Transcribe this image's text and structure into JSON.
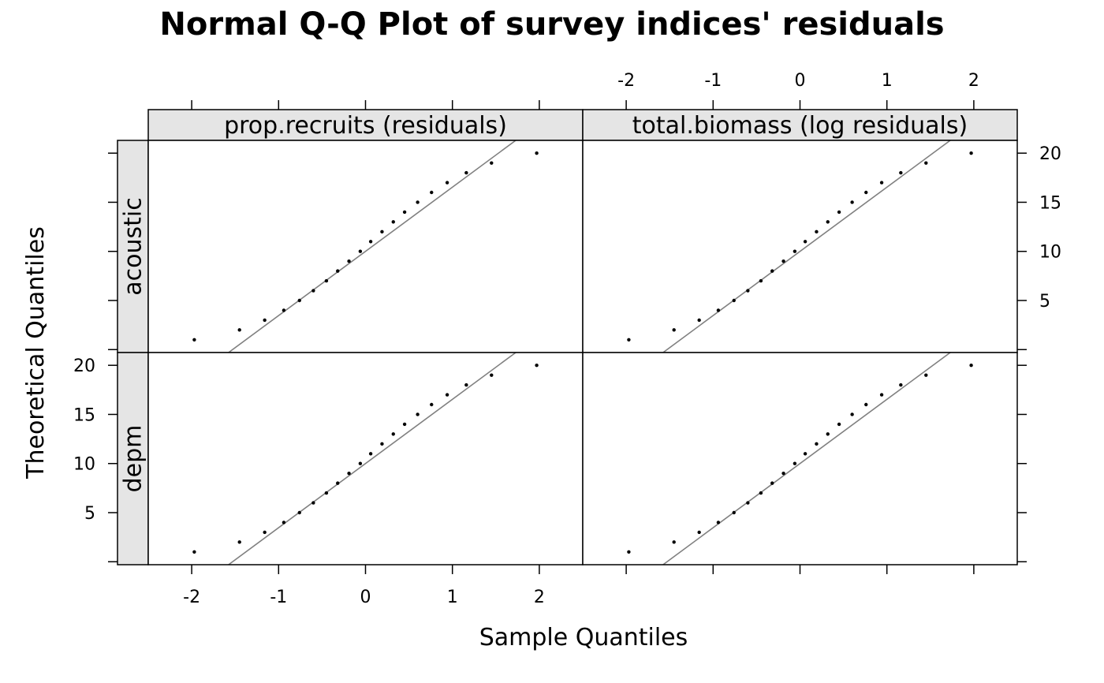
{
  "chart_data": {
    "type": "scatter",
    "title": "Normal Q-Q Plot of survey indices' residuals",
    "xlabel": "Sample Quantiles",
    "ylabel": "Theoretical Quantiles",
    "xlim": [
      -2.5,
      2.5
    ],
    "ylim": [
      -0.3,
      21.3
    ],
    "x_ticks": [
      -2,
      -1,
      0,
      1,
      2
    ],
    "x_tick_labels": [
      "-2",
      "-1",
      "0",
      "1",
      "2"
    ],
    "y_ticks": [
      0,
      5,
      10,
      15,
      20
    ],
    "y_tick_labels": [
      "",
      "5",
      "10",
      "15",
      "20"
    ],
    "grid": false,
    "columns": [
      "prop.recruits (residuals)",
      "total.biomass (log residuals)"
    ],
    "rows": [
      "acoustic",
      "depm"
    ],
    "panels": [
      {
        "column": "prop.recruits (residuals)",
        "row": "acoustic",
        "x": [
          -1.97,
          -1.45,
          -1.16,
          -0.94,
          -0.76,
          -0.6,
          -0.45,
          -0.32,
          -0.19,
          -0.06,
          0.06,
          0.19,
          0.32,
          0.45,
          0.6,
          0.76,
          0.94,
          1.16,
          1.45,
          1.97
        ],
        "y": [
          1,
          2,
          3,
          4,
          5,
          6,
          7,
          8,
          9,
          10,
          11,
          12,
          13,
          14,
          15,
          16,
          17,
          18,
          19,
          20
        ],
        "qq_line": [
          [
            -1.53,
            0
          ],
          [
            1.53,
            20
          ]
        ]
      },
      {
        "column": "total.biomass (log residuals)",
        "row": "acoustic",
        "x": [
          -1.97,
          -1.45,
          -1.16,
          -0.94,
          -0.76,
          -0.6,
          -0.45,
          -0.32,
          -0.19,
          -0.06,
          0.06,
          0.19,
          0.32,
          0.45,
          0.6,
          0.76,
          0.94,
          1.16,
          1.45,
          1.97
        ],
        "y": [
          1,
          2,
          3,
          4,
          5,
          6,
          7,
          8,
          9,
          10,
          11,
          12,
          13,
          14,
          15,
          16,
          17,
          18,
          19,
          20
        ],
        "qq_line": [
          [
            -1.53,
            0
          ],
          [
            1.53,
            20
          ]
        ]
      },
      {
        "column": "prop.recruits (residuals)",
        "row": "depm",
        "x": [
          -1.97,
          -1.45,
          -1.16,
          -0.94,
          -0.76,
          -0.6,
          -0.45,
          -0.32,
          -0.19,
          -0.06,
          0.06,
          0.19,
          0.32,
          0.45,
          0.6,
          0.76,
          0.94,
          1.16,
          1.45,
          1.97
        ],
        "y": [
          1,
          2,
          3,
          4,
          5,
          6,
          7,
          8,
          9,
          10,
          11,
          12,
          13,
          14,
          15,
          16,
          17,
          18,
          19,
          20
        ],
        "qq_line": [
          [
            -1.53,
            0
          ],
          [
            1.53,
            20
          ]
        ]
      },
      {
        "column": "total.biomass (log residuals)",
        "row": "depm",
        "x": [
          -1.97,
          -1.45,
          -1.16,
          -0.94,
          -0.76,
          -0.6,
          -0.45,
          -0.32,
          -0.19,
          -0.06,
          0.06,
          0.19,
          0.32,
          0.45,
          0.6,
          0.76,
          0.94,
          1.16,
          1.45,
          1.97
        ],
        "y": [
          1,
          2,
          3,
          4,
          5,
          6,
          7,
          8,
          9,
          10,
          11,
          12,
          13,
          14,
          15,
          16,
          17,
          18,
          19,
          20
        ],
        "qq_line": [
          [
            -1.53,
            0
          ],
          [
            1.53,
            20
          ]
        ]
      }
    ],
    "colors": {
      "points": "#000000",
      "reference_line": "#808080",
      "strip_fill": "#e5e5e5",
      "frame": "#000000"
    }
  }
}
